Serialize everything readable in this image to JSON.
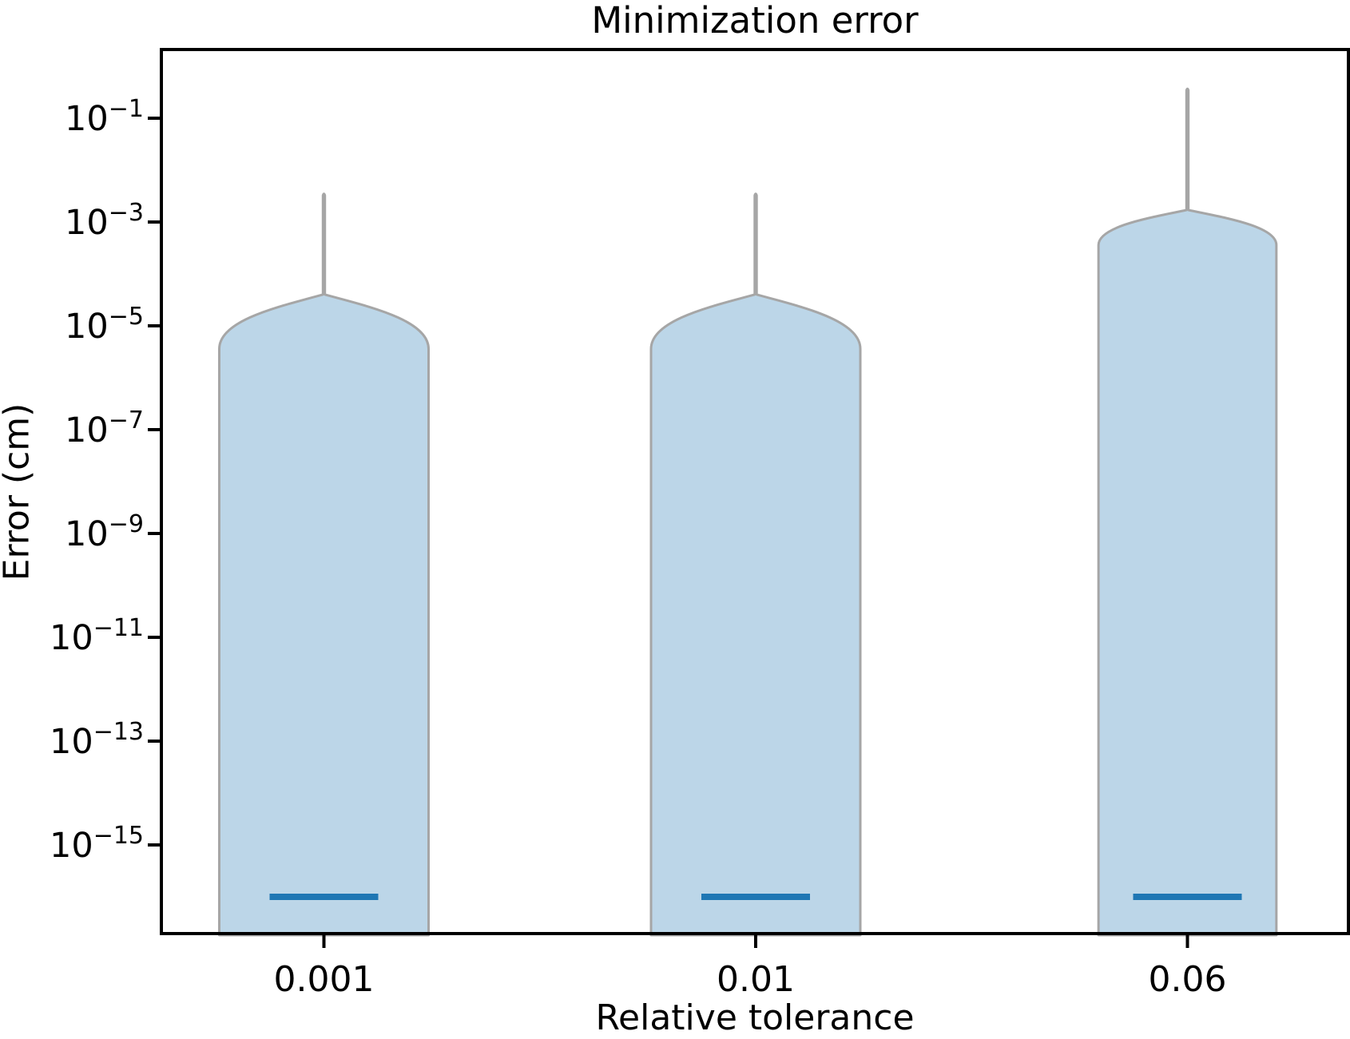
{
  "chart_data": {
    "type": "violin",
    "title": "Minimization error",
    "xlabel": "Relative tolerance",
    "ylabel": "Error (cm)",
    "yscale": "log",
    "grid": false,
    "legend": null,
    "ylim": [
      2e-17,
      2.1
    ],
    "y_tick_exponents": [
      -1,
      -3,
      -5,
      -7,
      -9,
      -11,
      -13,
      -15
    ],
    "categories": [
      "0.001",
      "0.01",
      "0.06"
    ],
    "violins": [
      {
        "category": "0.001",
        "tail_top": 0.0035,
        "body_top": 4e-05,
        "full_width_from": 3.6e-06,
        "median": 1e-16,
        "rel_width": 1.0,
        "clipped_at_bottom": true
      },
      {
        "category": "0.01",
        "tail_top": 0.0035,
        "body_top": 4e-05,
        "full_width_from": 3.6e-06,
        "median": 1e-16,
        "rel_width": 1.0,
        "clipped_at_bottom": true
      },
      {
        "category": "0.06",
        "tail_top": 0.37,
        "body_top": 0.0017,
        "full_width_from": 0.00036,
        "median": 1e-16,
        "rel_width": 0.85,
        "clipped_at_bottom": true
      }
    ],
    "colors": {
      "violin_fill": "#bcd6e8",
      "violin_edge": "#a6a6a6",
      "median_line": "#1f77b4",
      "axis": "#000000",
      "background": "#ffffff"
    }
  }
}
